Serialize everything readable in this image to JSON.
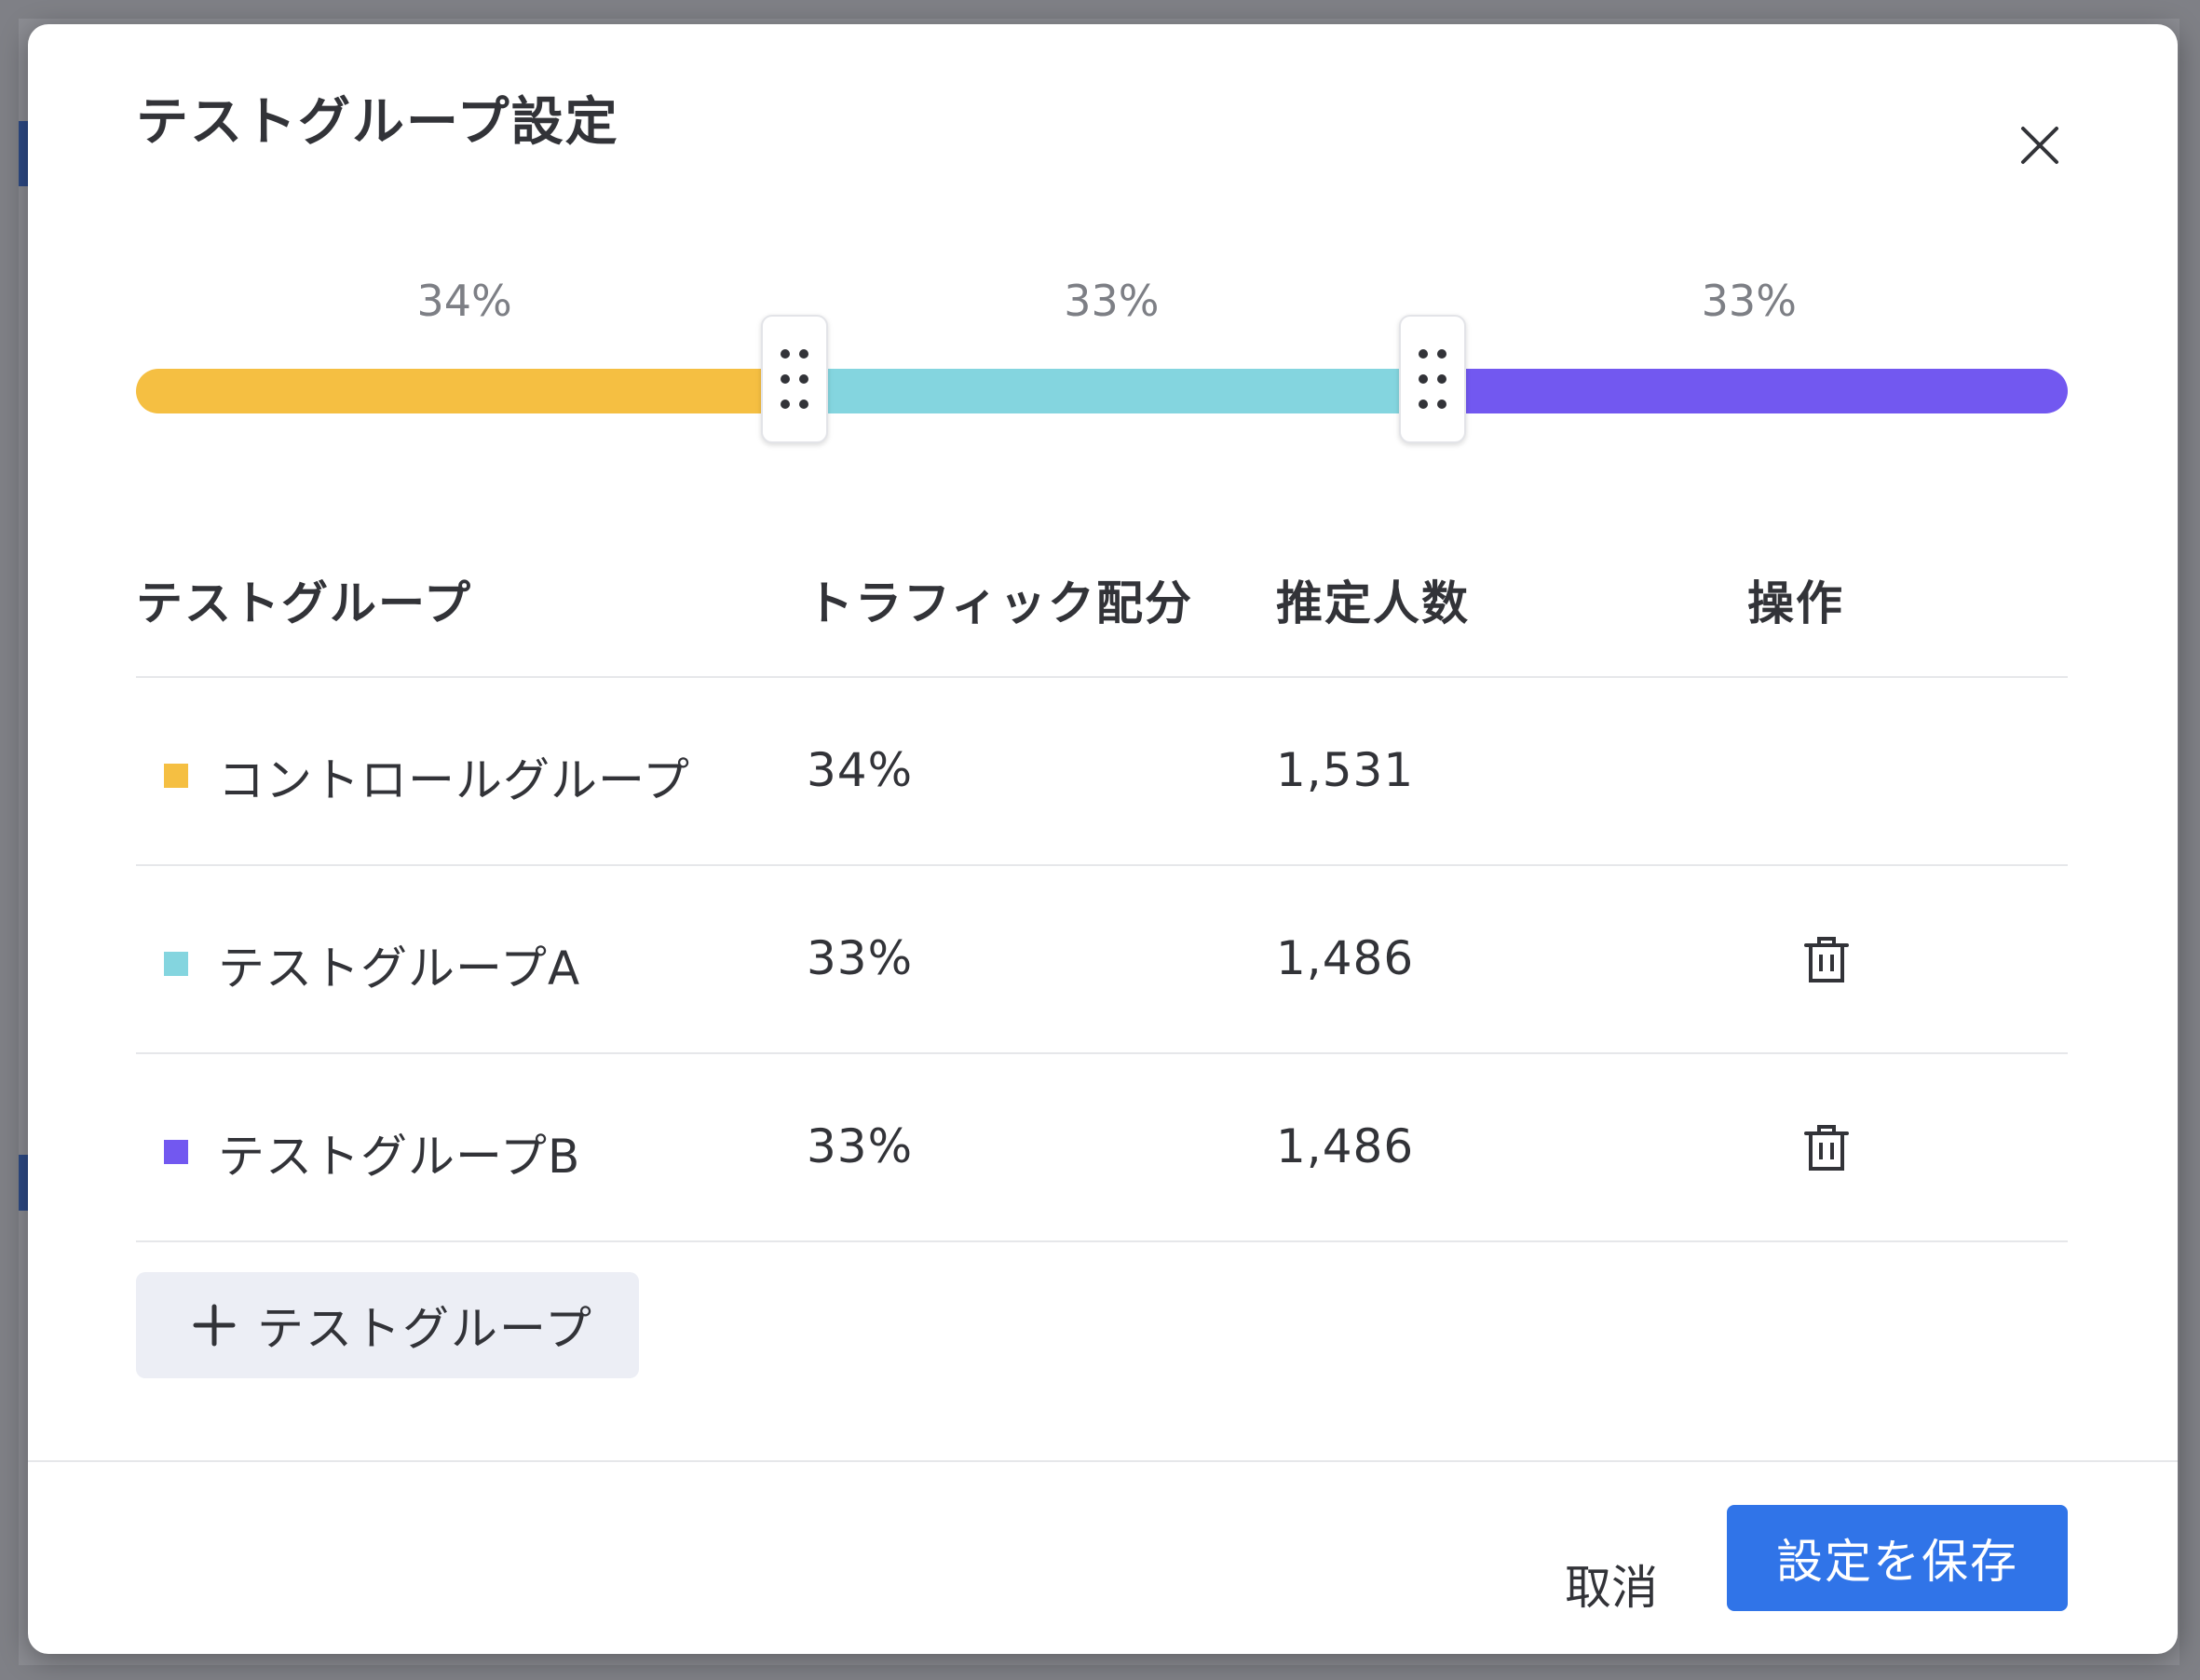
{
  "modal": {
    "title": "テストグループ設定"
  },
  "slider": {
    "segments": [
      {
        "label": "34%",
        "value": 34,
        "color": "#f5bf42"
      },
      {
        "label": "33%",
        "value": 33,
        "color": "#84d5df"
      },
      {
        "label": "33%",
        "value": 33,
        "color": "#7258f0"
      }
    ]
  },
  "table": {
    "headers": {
      "group": "テストグループ",
      "traffic": "トラフィック配分",
      "estimate": "推定人数",
      "actions": "操作"
    },
    "rows": [
      {
        "name": "コントロールグループ",
        "traffic": "34%",
        "estimate": "1,531",
        "color": "#f5bf42",
        "deletable": false
      },
      {
        "name": "テストグループA",
        "traffic": "33%",
        "estimate": "1,486",
        "color": "#84d5df",
        "deletable": true
      },
      {
        "name": "テストグループB",
        "traffic": "33%",
        "estimate": "1,486",
        "color": "#7258f0",
        "deletable": true
      }
    ]
  },
  "add_button": {
    "label": "テストグループ"
  },
  "footer": {
    "cancel_label": "取消",
    "save_label": "設定を保存"
  },
  "colors": {
    "primary": "#3074e8"
  }
}
